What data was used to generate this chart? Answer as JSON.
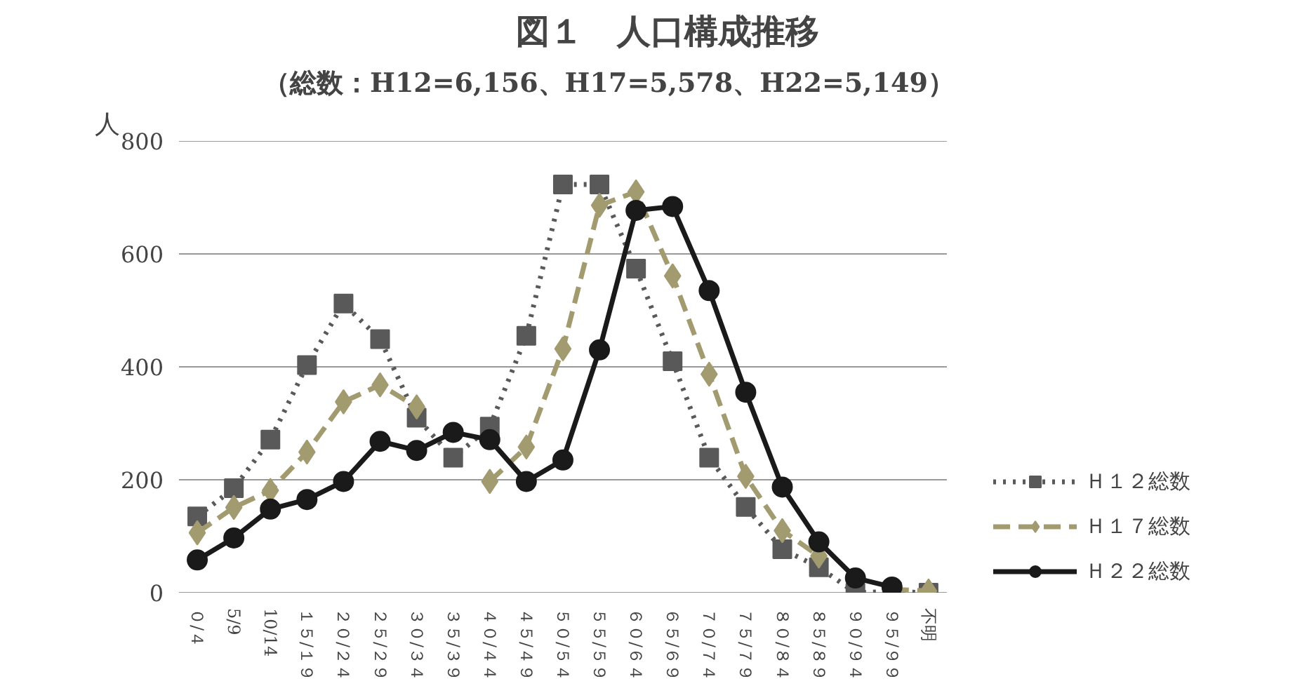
{
  "chart_data": {
    "type": "line",
    "title": "図１　人口構成推移",
    "subtitle": "（総数：H12=6,156、H17=5,578、H22=5,149）",
    "ylabel": "人",
    "categories": [
      "０/４",
      "5/9",
      "10/14",
      "１５/１９",
      "２０/２４",
      "２５/２９",
      "３０/３４",
      "３５/３９",
      "４０/４４",
      "４５/４９",
      "５０/５４",
      "５５/５９",
      "６０/６４",
      "６５/６９",
      "７０/７４",
      "７５/７９",
      "８０/８４",
      "８５/８９",
      "９０/９４",
      "９５/９９",
      "不明"
    ],
    "series": [
      {
        "name": "Ｈ１２総数",
        "color": "#595959",
        "marker": "square",
        "line_style": "dotted",
        "values": [
          135,
          185,
          271,
          403,
          512,
          449,
          310,
          239,
          294,
          455,
          723,
          723,
          574,
          410,
          239,
          152,
          77,
          45,
          0,
          2,
          0
        ]
      },
      {
        "name": "Ｈ１７総数",
        "color": "#a39b70",
        "marker": "diamond",
        "line_style": "dashed",
        "values": [
          106,
          151,
          181,
          249,
          338,
          368,
          329,
          null,
          197,
          258,
          432,
          686,
          710,
          561,
          387,
          206,
          110,
          65,
          null,
          6,
          3
        ]
      },
      {
        "name": "Ｈ２２総数",
        "color": "#1a1a1a",
        "marker": "circle",
        "line_style": "solid",
        "values": [
          58,
          97,
          148,
          165,
          197,
          268,
          252,
          284,
          271,
          197,
          235,
          430,
          677,
          684,
          535,
          355,
          187,
          90,
          26,
          10,
          null
        ]
      }
    ],
    "ylim": [
      0,
      800
    ],
    "yticks": [
      0,
      200,
      400,
      600,
      800
    ],
    "grid": "y",
    "legend": "right"
  }
}
